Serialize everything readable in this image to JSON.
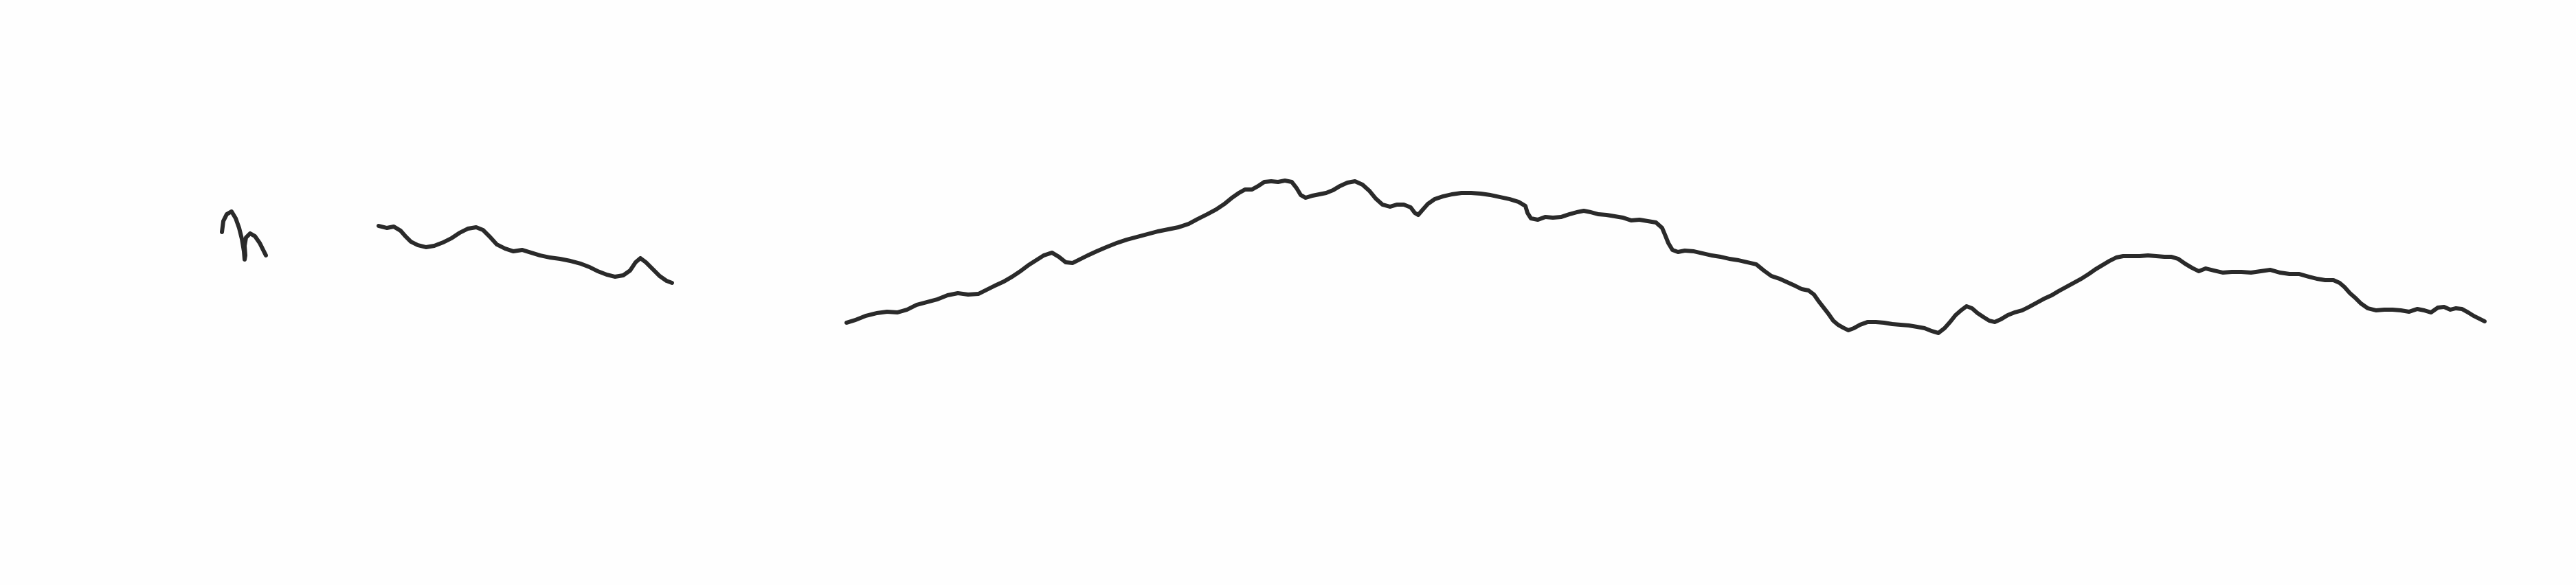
{
  "background_color": "#fefefe",
  "ink_color": "#2a2a2a",
  "strokes": [
    {
      "name": "small-squiggle-stroke"
    },
    {
      "name": "short-wave-stroke"
    },
    {
      "name": "long-ridge-stroke"
    }
  ]
}
